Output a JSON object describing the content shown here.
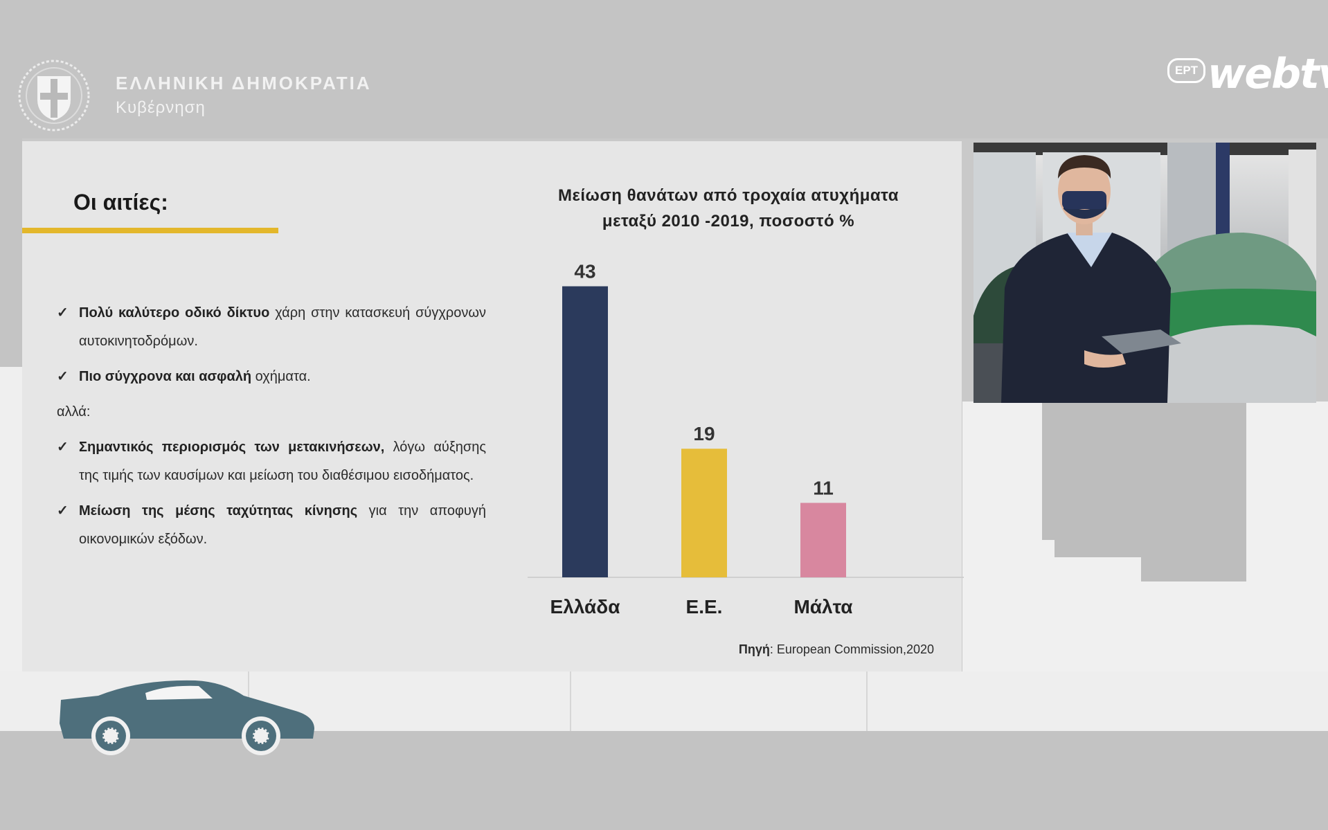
{
  "header": {
    "gov_title": "ΕΛΛΗΝΙΚΗ ΔΗΜΟΚΡΑΤΙΑ",
    "gov_subtitle": "Κυβέρνηση",
    "broadcaster_badge": "ΕΡΤ",
    "broadcaster_name": "webtv"
  },
  "slide": {
    "title": "Οι αιτίες:",
    "accent_color": "#e3b72b",
    "bullets": [
      {
        "bold": "Πολύ καλύτερο οδικό δίκτυο",
        "rest": " χάρη στην κατασκευή σύγχρονων αυτοκινητοδρόμων."
      },
      {
        "bold": "Πιο σύγχρονα και  ασφαλή",
        "rest": " οχήματα."
      }
    ],
    "conjunction": "αλλά:",
    "bullets2": [
      {
        "bold": "Σημαντικός περιορισμός των μετακινήσεων,",
        "rest": " λόγω αύξησης της τιμής των καυσίμων και μείωση του διαθέσιμου εισοδήματος."
      },
      {
        "bold": "Μείωση της μέσης ταχύτητας κίνησης",
        "rest": " για την αποφυγή οικονομικών εξόδων."
      }
    ],
    "source_label": "Πηγή",
    "source_text": ": European Commission,2020"
  },
  "chart_data": {
    "type": "bar",
    "title": "Μείωση θανάτων από τροχαία ατυχήματα μεταξύ 2010 -2019, ποσοστό %",
    "title_lines": [
      "Μείωση θανάτων από τροχαία ατυχήματα",
      "μεταξύ 2010 -2019, ποσοστό %"
    ],
    "categories": [
      "Ελλάδα",
      "Ε.Ε.",
      "Μάλτα"
    ],
    "values": [
      43,
      19,
      11
    ],
    "colors": [
      "#2b3a5c",
      "#e6bd3a",
      "#d8879f"
    ],
    "ylim": [
      0,
      45
    ],
    "grid": false,
    "legend": "none"
  },
  "icons": {
    "emblem": "greek-coat-of-arms-icon",
    "tick": "checkmark-icon",
    "car": "car-icon"
  }
}
